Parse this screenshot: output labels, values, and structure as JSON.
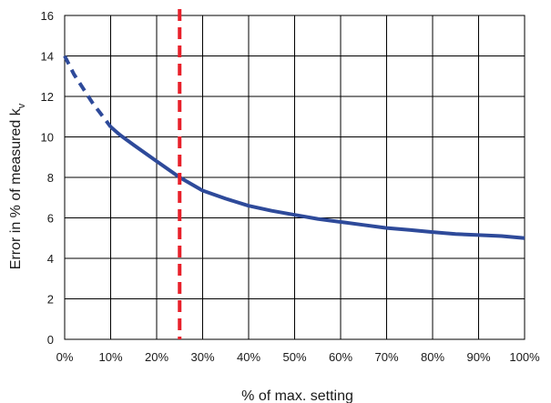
{
  "chart_data": {
    "type": "line",
    "title": "",
    "xlabel": "% of max. setting",
    "ylabel_main": "Error in % of measured k",
    "ylabel_sub": "v",
    "xlim": [
      0,
      100
    ],
    "ylim": [
      0,
      16
    ],
    "grid": true,
    "x_ticks": [
      {
        "value": 0,
        "label": "0%"
      },
      {
        "value": 10,
        "label": "10%"
      },
      {
        "value": 20,
        "label": "20%"
      },
      {
        "value": 30,
        "label": "30%"
      },
      {
        "value": 40,
        "label": "40%"
      },
      {
        "value": 50,
        "label": "50%"
      },
      {
        "value": 60,
        "label": "60%"
      },
      {
        "value": 70,
        "label": "70%"
      },
      {
        "value": 80,
        "label": "80%"
      },
      {
        "value": 90,
        "label": "90%"
      },
      {
        "value": 100,
        "label": "100%"
      }
    ],
    "y_ticks": [
      {
        "value": 0,
        "label": "0"
      },
      {
        "value": 2,
        "label": "2"
      },
      {
        "value": 4,
        "label": "4"
      },
      {
        "value": 6,
        "label": "6"
      },
      {
        "value": 8,
        "label": "8"
      },
      {
        "value": 10,
        "label": "10"
      },
      {
        "value": 12,
        "label": "12"
      },
      {
        "value": 14,
        "label": "14"
      },
      {
        "value": 16,
        "label": "16"
      }
    ],
    "series": [
      {
        "style": "dashed",
        "color": "#2e4a9a",
        "x": [
          0,
          2,
          4,
          6,
          8,
          10
        ],
        "y": [
          14.0,
          13.1,
          12.4,
          11.7,
          11.1,
          10.5
        ]
      },
      {
        "style": "solid",
        "color": "#2e4a9a",
        "x": [
          10,
          12,
          15,
          20,
          25,
          30,
          35,
          40,
          45,
          50,
          55,
          60,
          65,
          70,
          75,
          80,
          85,
          90,
          95,
          100
        ],
        "y": [
          10.5,
          10.1,
          9.6,
          8.8,
          8.0,
          7.35,
          6.95,
          6.6,
          6.35,
          6.15,
          5.95,
          5.8,
          5.65,
          5.5,
          5.4,
          5.3,
          5.2,
          5.15,
          5.1,
          5.0
        ]
      }
    ],
    "vertical_marker": {
      "x": 25,
      "style": "dashed",
      "color": "#e8202a"
    }
  }
}
